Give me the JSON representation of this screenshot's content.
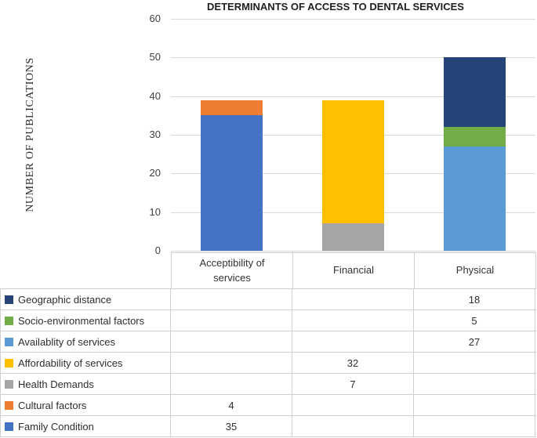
{
  "title": "DETERMINANTS OF ACCESS TO DENTAL SERVICES",
  "y_axis_label": "NUMBER OF PUBLICATIONS",
  "chart_data": {
    "type": "bar",
    "stacked": true,
    "title": "DETERMINANTS OF ACCESS TO DENTAL SERVICES",
    "xlabel": "",
    "ylabel": "NUMBER OF PUBLICATIONS",
    "ylim": [
      0,
      60
    ],
    "yticks": [
      0,
      10,
      20,
      30,
      40,
      50,
      60
    ],
    "grid": "horizontal",
    "gridline_color": "#d9d9d9",
    "legend_position": "data-table-below",
    "categories": [
      "Acceptibility of services",
      "Financial",
      "Physical"
    ],
    "series": [
      {
        "name": "Family Condition",
        "color": "#4472C4",
        "values": [
          35,
          null,
          null
        ]
      },
      {
        "name": "Cultural factors",
        "color": "#ED7D31",
        "values": [
          4,
          null,
          null
        ]
      },
      {
        "name": "Health Demands",
        "color": "#A5A5A5",
        "values": [
          null,
          7,
          null
        ]
      },
      {
        "name": "Affordability of services",
        "color": "#FFC000",
        "values": [
          null,
          32,
          null
        ]
      },
      {
        "name": "Availablity of services",
        "color": "#5B9BD5",
        "values": [
          null,
          null,
          27
        ]
      },
      {
        "name": "Socio-environmental factors",
        "color": "#70AD47",
        "values": [
          null,
          null,
          5
        ]
      },
      {
        "name": "Geographic distance",
        "color": "#264478",
        "values": [
          null,
          null,
          18
        ]
      }
    ],
    "category_totals": [
      39,
      39,
      50
    ]
  },
  "data_table": {
    "column_headers": [
      "Acceptibility of services",
      "Financial",
      "Physical"
    ],
    "rows": [
      {
        "label": "Geographic distance",
        "swatch_color": "#264478",
        "values": [
          "",
          "",
          "18"
        ]
      },
      {
        "label": "Socio-environmental factors",
        "swatch_color": "#70AD47",
        "values": [
          "",
          "",
          "5"
        ]
      },
      {
        "label": "Availablity of services",
        "swatch_color": "#5B9BD5",
        "values": [
          "",
          "",
          "27"
        ]
      },
      {
        "label": "Affordability of services",
        "swatch_color": "#FFC000",
        "values": [
          "",
          "32",
          ""
        ]
      },
      {
        "label": "Health Demands",
        "swatch_color": "#A5A5A5",
        "values": [
          "",
          "7",
          ""
        ]
      },
      {
        "label": "Cultural factors",
        "swatch_color": "#ED7D31",
        "values": [
          "4",
          "",
          ""
        ]
      },
      {
        "label": "Family Condition",
        "swatch_color": "#4472C4",
        "values": [
          "35",
          "",
          ""
        ]
      }
    ]
  }
}
